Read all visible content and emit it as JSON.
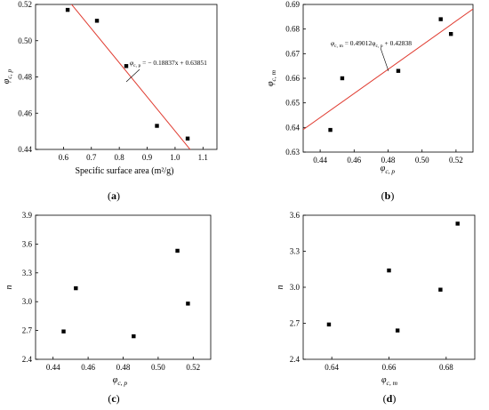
{
  "chart_data": [
    {
      "type": "scatter",
      "caption": "(a)",
      "xlabel": "Specific surface area (m²/g)",
      "ylabel": {
        "main": "φ",
        "sub": "c, p"
      },
      "xlim": [
        0.5,
        1.15
      ],
      "ylim": [
        0.44,
        0.52
      ],
      "xticks": [
        "0.6",
        "0.7",
        "0.8",
        "0.9",
        "1.0",
        "1.1"
      ],
      "yticks": [
        "0.44",
        "0.46",
        "0.48",
        "0.50",
        "0.52"
      ],
      "points": {
        "x": [
          0.615,
          0.72,
          0.825,
          0.935,
          1.045
        ],
        "y": [
          0.517,
          0.511,
          0.486,
          0.453,
          0.446
        ]
      },
      "fit": {
        "slope": -0.18837,
        "intercept": 0.63851,
        "color": "#e03c31"
      },
      "equation": {
        "lhs": "φ",
        "sub": "c, p",
        "rhs": " = − 0.18837x + 0.63851"
      }
    },
    {
      "type": "scatter",
      "caption": "(b)",
      "xlabel": {
        "main": "φ",
        "sub": "c, p"
      },
      "ylabel": {
        "main": "φ",
        "sub": "c, m"
      },
      "xlim": [
        0.43,
        0.53
      ],
      "ylim": [
        0.63,
        0.69
      ],
      "xticks": [
        "0.44",
        "0.46",
        "0.48",
        "0.50",
        "0.52"
      ],
      "yticks": [
        "0.63",
        "0.64",
        "0.65",
        "0.66",
        "0.67",
        "0.68",
        "0.69"
      ],
      "points": {
        "x": [
          0.446,
          0.453,
          0.486,
          0.511,
          0.517
        ],
        "y": [
          0.639,
          0.66,
          0.663,
          0.684,
          0.678
        ]
      },
      "fit": {
        "slope": 0.49012,
        "intercept": 0.42838,
        "color": "#e03c31"
      },
      "equation": {
        "lhs": "φ",
        "sub": "c, m",
        "mid": " = 0.49012φ",
        "sub2": "c, p",
        "rhs": " + 0.42838"
      }
    },
    {
      "type": "scatter",
      "caption": "(c)",
      "xlabel": {
        "main": "φ",
        "sub": "c, p"
      },
      "ylabel": {
        "main": "n",
        "sub": ""
      },
      "xlim": [
        0.43,
        0.53
      ],
      "ylim": [
        2.4,
        3.9
      ],
      "xticks": [
        "0.44",
        "0.46",
        "0.48",
        "0.50",
        "0.52"
      ],
      "yticks": [
        "2.4",
        "2.7",
        "3.0",
        "3.3",
        "3.6",
        "3.9"
      ],
      "points": {
        "x": [
          0.446,
          0.453,
          0.486,
          0.511,
          0.517
        ],
        "y": [
          2.69,
          3.14,
          2.64,
          3.53,
          2.98
        ]
      }
    },
    {
      "type": "scatter",
      "caption": "(d)",
      "xlabel": {
        "main": "φ",
        "sub": "c, m"
      },
      "ylabel": {
        "main": "n",
        "sub": ""
      },
      "xlim": [
        0.63,
        0.69
      ],
      "ylim": [
        2.4,
        3.6
      ],
      "xticks": [
        "0.64",
        "0.66",
        "0.68"
      ],
      "yticks": [
        "2.4",
        "2.7",
        "3.0",
        "3.3",
        "3.6"
      ],
      "points": {
        "x": [
          0.639,
          0.66,
          0.663,
          0.678,
          0.684
        ],
        "y": [
          2.69,
          3.14,
          2.64,
          2.98,
          3.53
        ]
      }
    }
  ]
}
